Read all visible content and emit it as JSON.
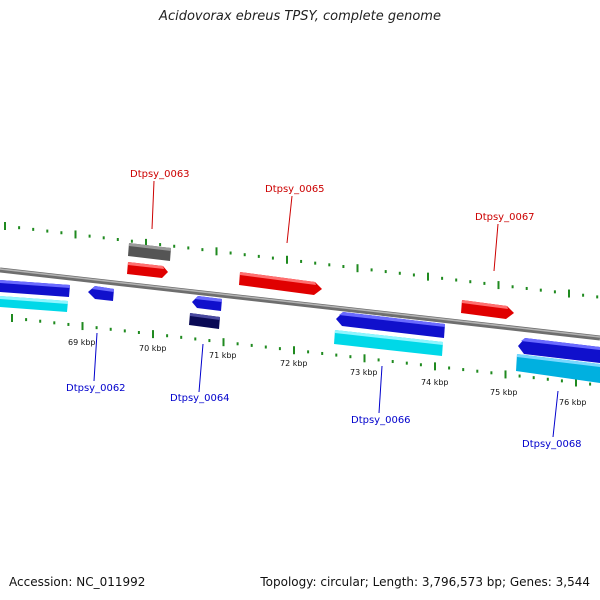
{
  "title": "Acidovorax ebreus TPSY, complete genome",
  "footer": {
    "accession": "Accession: NC_011992",
    "summary": "Topology: circular; Length: 3,796,573 bp; Genes: 3,544"
  },
  "colors": {
    "backbone": "#808080",
    "forward_feature": "#ff1a1a",
    "forward_label": "#cc0000",
    "reverse_feature": "#1a1aff",
    "reverse_label": "#0000cc",
    "reverse_cds": "#00f0ff",
    "dark_feature": "#0a0a60",
    "grey_feature": "#606060",
    "tick": "#1f8a1f"
  },
  "kbp_labels": [
    "69 kbp",
    "70 kbp",
    "71 kbp",
    "72 kbp",
    "73 kbp",
    "74 kbp",
    "75 kbp",
    "76 kbp"
  ],
  "gene_labels": {
    "forward": [
      "Dtpsy_0063",
      "Dtpsy_0065",
      "Dtpsy_0067"
    ],
    "reverse": [
      "Dtpsy_0062",
      "Dtpsy_0064",
      "Dtpsy_0066",
      "Dtpsy_0068"
    ]
  }
}
